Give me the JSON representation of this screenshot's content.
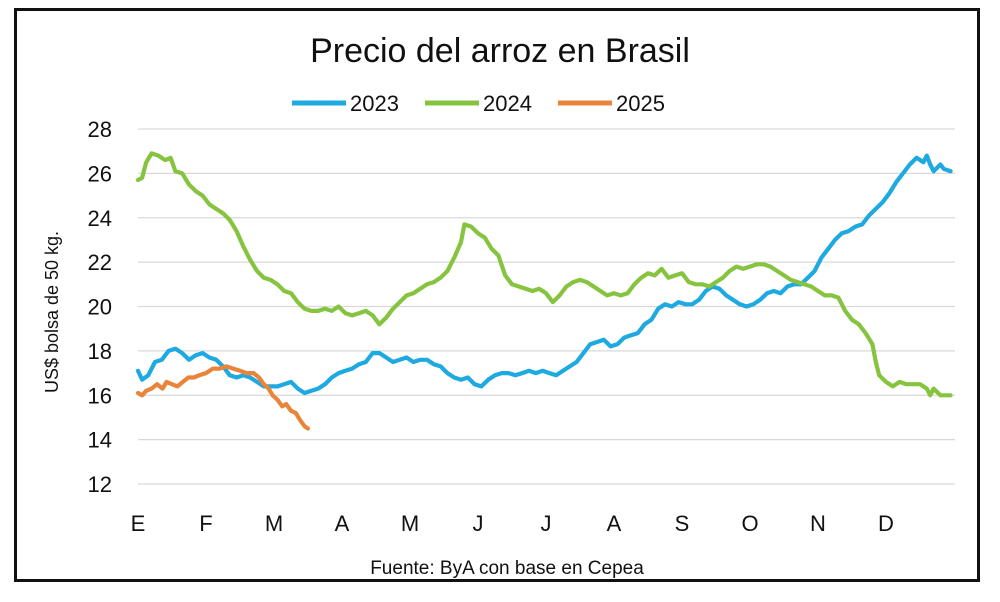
{
  "chart_data": {
    "type": "line",
    "title": "Precio del arroz en Brasil",
    "ylabel": "US$ bolsa de 50 kg.",
    "xlabel": "",
    "source": "Fuente: ByA con base en Cepea",
    "ylim": [
      12,
      28
    ],
    "yticks": [
      "12",
      "14",
      "16",
      "18",
      "20",
      "22",
      "24",
      "26",
      "28"
    ],
    "xlim": [
      0,
      12
    ],
    "month_labels": [
      "E",
      "F",
      "M",
      "A",
      "M",
      "J",
      "J",
      "A",
      "S",
      "O",
      "N",
      "D"
    ],
    "grid": true,
    "legend_position": "top",
    "series": [
      {
        "name": "2023",
        "color": "#1FA9E1",
        "points": [
          [
            0.0,
            17.1
          ],
          [
            0.06,
            16.7
          ],
          [
            0.15,
            16.9
          ],
          [
            0.25,
            17.5
          ],
          [
            0.35,
            17.6
          ],
          [
            0.45,
            18.0
          ],
          [
            0.55,
            18.1
          ],
          [
            0.65,
            17.9
          ],
          [
            0.75,
            17.6
          ],
          [
            0.85,
            17.8
          ],
          [
            0.95,
            17.9
          ],
          [
            1.05,
            17.7
          ],
          [
            1.15,
            17.6
          ],
          [
            1.25,
            17.3
          ],
          [
            1.35,
            16.9
          ],
          [
            1.45,
            16.8
          ],
          [
            1.55,
            16.9
          ],
          [
            1.65,
            16.8
          ],
          [
            1.75,
            16.6
          ],
          [
            1.85,
            16.4
          ],
          [
            1.95,
            16.4
          ],
          [
            2.05,
            16.4
          ],
          [
            2.15,
            16.5
          ],
          [
            2.25,
            16.6
          ],
          [
            2.35,
            16.3
          ],
          [
            2.45,
            16.1
          ],
          [
            2.55,
            16.2
          ],
          [
            2.65,
            16.3
          ],
          [
            2.75,
            16.5
          ],
          [
            2.85,
            16.8
          ],
          [
            2.95,
            17.0
          ],
          [
            3.05,
            17.1
          ],
          [
            3.15,
            17.2
          ],
          [
            3.25,
            17.4
          ],
          [
            3.35,
            17.5
          ],
          [
            3.45,
            17.9
          ],
          [
            3.55,
            17.9
          ],
          [
            3.65,
            17.7
          ],
          [
            3.75,
            17.5
          ],
          [
            3.85,
            17.6
          ],
          [
            3.95,
            17.7
          ],
          [
            4.05,
            17.5
          ],
          [
            4.15,
            17.6
          ],
          [
            4.25,
            17.6
          ],
          [
            4.35,
            17.4
          ],
          [
            4.45,
            17.3
          ],
          [
            4.55,
            17.0
          ],
          [
            4.65,
            16.8
          ],
          [
            4.75,
            16.7
          ],
          [
            4.85,
            16.8
          ],
          [
            4.95,
            16.5
          ],
          [
            5.05,
            16.4
          ],
          [
            5.15,
            16.7
          ],
          [
            5.25,
            16.9
          ],
          [
            5.35,
            17.0
          ],
          [
            5.45,
            17.0
          ],
          [
            5.55,
            16.9
          ],
          [
            5.65,
            17.0
          ],
          [
            5.75,
            17.1
          ],
          [
            5.85,
            17.0
          ],
          [
            5.95,
            17.1
          ],
          [
            6.05,
            17.0
          ],
          [
            6.15,
            16.9
          ],
          [
            6.25,
            17.1
          ],
          [
            6.35,
            17.3
          ],
          [
            6.45,
            17.5
          ],
          [
            6.55,
            17.9
          ],
          [
            6.65,
            18.3
          ],
          [
            6.75,
            18.4
          ],
          [
            6.85,
            18.5
          ],
          [
            6.95,
            18.2
          ],
          [
            7.05,
            18.3
          ],
          [
            7.15,
            18.6
          ],
          [
            7.25,
            18.7
          ],
          [
            7.35,
            18.8
          ],
          [
            7.45,
            19.2
          ],
          [
            7.55,
            19.4
          ],
          [
            7.65,
            19.9
          ],
          [
            7.75,
            20.1
          ],
          [
            7.85,
            20.0
          ],
          [
            7.95,
            20.2
          ],
          [
            8.05,
            20.1
          ],
          [
            8.15,
            20.1
          ],
          [
            8.25,
            20.3
          ],
          [
            8.35,
            20.7
          ],
          [
            8.45,
            20.9
          ],
          [
            8.55,
            20.8
          ],
          [
            8.65,
            20.5
          ],
          [
            8.75,
            20.3
          ],
          [
            8.85,
            20.1
          ],
          [
            8.95,
            20.0
          ],
          [
            9.05,
            20.1
          ],
          [
            9.15,
            20.3
          ],
          [
            9.25,
            20.6
          ],
          [
            9.35,
            20.7
          ],
          [
            9.45,
            20.6
          ],
          [
            9.55,
            20.9
          ],
          [
            9.65,
            21.0
          ],
          [
            9.75,
            21.0
          ],
          [
            9.85,
            21.3
          ],
          [
            9.95,
            21.6
          ],
          [
            10.05,
            22.2
          ],
          [
            10.15,
            22.6
          ],
          [
            10.25,
            23.0
          ],
          [
            10.35,
            23.3
          ],
          [
            10.45,
            23.4
          ],
          [
            10.55,
            23.6
          ],
          [
            10.65,
            23.7
          ],
          [
            10.75,
            24.1
          ],
          [
            10.85,
            24.4
          ],
          [
            10.95,
            24.7
          ],
          [
            11.05,
            25.1
          ],
          [
            11.15,
            25.6
          ],
          [
            11.25,
            26.0
          ],
          [
            11.35,
            26.4
          ],
          [
            11.45,
            26.7
          ],
          [
            11.55,
            26.5
          ],
          [
            11.6,
            26.8
          ],
          [
            11.65,
            26.4
          ],
          [
            11.7,
            26.1
          ],
          [
            11.8,
            26.4
          ],
          [
            11.85,
            26.2
          ],
          [
            11.95,
            26.1
          ]
        ]
      },
      {
        "name": "2024",
        "color": "#86C440",
        "points": [
          [
            0.0,
            25.7
          ],
          [
            0.06,
            25.8
          ],
          [
            0.12,
            26.5
          ],
          [
            0.2,
            26.9
          ],
          [
            0.3,
            26.8
          ],
          [
            0.4,
            26.6
          ],
          [
            0.48,
            26.7
          ],
          [
            0.55,
            26.1
          ],
          [
            0.65,
            26.0
          ],
          [
            0.75,
            25.5
          ],
          [
            0.85,
            25.2
          ],
          [
            0.95,
            25.0
          ],
          [
            1.05,
            24.6
          ],
          [
            1.15,
            24.4
          ],
          [
            1.25,
            24.2
          ],
          [
            1.35,
            23.9
          ],
          [
            1.45,
            23.4
          ],
          [
            1.55,
            22.7
          ],
          [
            1.65,
            22.1
          ],
          [
            1.75,
            21.6
          ],
          [
            1.85,
            21.3
          ],
          [
            1.95,
            21.2
          ],
          [
            2.05,
            21.0
          ],
          [
            2.15,
            20.7
          ],
          [
            2.25,
            20.6
          ],
          [
            2.35,
            20.2
          ],
          [
            2.45,
            19.9
          ],
          [
            2.55,
            19.8
          ],
          [
            2.65,
            19.8
          ],
          [
            2.75,
            19.9
          ],
          [
            2.85,
            19.8
          ],
          [
            2.95,
            20.0
          ],
          [
            3.05,
            19.7
          ],
          [
            3.15,
            19.6
          ],
          [
            3.25,
            19.7
          ],
          [
            3.35,
            19.8
          ],
          [
            3.45,
            19.6
          ],
          [
            3.55,
            19.2
          ],
          [
            3.65,
            19.5
          ],
          [
            3.75,
            19.9
          ],
          [
            3.85,
            20.2
          ],
          [
            3.95,
            20.5
          ],
          [
            4.05,
            20.6
          ],
          [
            4.15,
            20.8
          ],
          [
            4.25,
            21.0
          ],
          [
            4.35,
            21.1
          ],
          [
            4.45,
            21.3
          ],
          [
            4.55,
            21.6
          ],
          [
            4.65,
            22.2
          ],
          [
            4.75,
            22.9
          ],
          [
            4.8,
            23.7
          ],
          [
            4.9,
            23.6
          ],
          [
            5.0,
            23.3
          ],
          [
            5.1,
            23.1
          ],
          [
            5.2,
            22.6
          ],
          [
            5.3,
            22.3
          ],
          [
            5.4,
            21.4
          ],
          [
            5.5,
            21.0
          ],
          [
            5.6,
            20.9
          ],
          [
            5.7,
            20.8
          ],
          [
            5.8,
            20.7
          ],
          [
            5.9,
            20.8
          ],
          [
            6.0,
            20.6
          ],
          [
            6.1,
            20.2
          ],
          [
            6.2,
            20.5
          ],
          [
            6.3,
            20.9
          ],
          [
            6.4,
            21.1
          ],
          [
            6.5,
            21.2
          ],
          [
            6.6,
            21.1
          ],
          [
            6.7,
            20.9
          ],
          [
            6.8,
            20.7
          ],
          [
            6.9,
            20.5
          ],
          [
            7.0,
            20.6
          ],
          [
            7.1,
            20.5
          ],
          [
            7.2,
            20.6
          ],
          [
            7.3,
            21.0
          ],
          [
            7.4,
            21.3
          ],
          [
            7.5,
            21.5
          ],
          [
            7.6,
            21.4
          ],
          [
            7.7,
            21.7
          ],
          [
            7.8,
            21.3
          ],
          [
            7.9,
            21.4
          ],
          [
            8.0,
            21.5
          ],
          [
            8.1,
            21.1
          ],
          [
            8.2,
            21.0
          ],
          [
            8.3,
            21.0
          ],
          [
            8.4,
            20.9
          ],
          [
            8.5,
            21.1
          ],
          [
            8.6,
            21.3
          ],
          [
            8.7,
            21.6
          ],
          [
            8.8,
            21.8
          ],
          [
            8.9,
            21.7
          ],
          [
            9.0,
            21.8
          ],
          [
            9.1,
            21.9
          ],
          [
            9.2,
            21.9
          ],
          [
            9.3,
            21.8
          ],
          [
            9.4,
            21.6
          ],
          [
            9.5,
            21.4
          ],
          [
            9.6,
            21.2
          ],
          [
            9.7,
            21.1
          ],
          [
            9.8,
            21.0
          ],
          [
            9.9,
            20.9
          ],
          [
            10.0,
            20.7
          ],
          [
            10.1,
            20.5
          ],
          [
            10.2,
            20.5
          ],
          [
            10.3,
            20.4
          ],
          [
            10.4,
            19.8
          ],
          [
            10.5,
            19.4
          ],
          [
            10.6,
            19.2
          ],
          [
            10.7,
            18.8
          ],
          [
            10.8,
            18.3
          ],
          [
            10.85,
            17.5
          ],
          [
            10.9,
            16.9
          ],
          [
            11.0,
            16.6
          ],
          [
            11.1,
            16.4
          ],
          [
            11.2,
            16.6
          ],
          [
            11.3,
            16.5
          ],
          [
            11.4,
            16.5
          ],
          [
            11.5,
            16.5
          ],
          [
            11.6,
            16.3
          ],
          [
            11.65,
            16.0
          ],
          [
            11.7,
            16.3
          ],
          [
            11.8,
            16.0
          ],
          [
            11.95,
            16.0
          ]
        ]
      },
      {
        "name": "2025",
        "color": "#E8853A",
        "points": [
          [
            0.0,
            16.1
          ],
          [
            0.06,
            16.0
          ],
          [
            0.12,
            16.2
          ],
          [
            0.2,
            16.3
          ],
          [
            0.28,
            16.5
          ],
          [
            0.36,
            16.3
          ],
          [
            0.42,
            16.6
          ],
          [
            0.5,
            16.5
          ],
          [
            0.58,
            16.4
          ],
          [
            0.66,
            16.6
          ],
          [
            0.74,
            16.8
          ],
          [
            0.82,
            16.8
          ],
          [
            0.9,
            16.9
          ],
          [
            1.0,
            17.0
          ],
          [
            1.1,
            17.2
          ],
          [
            1.2,
            17.2
          ],
          [
            1.3,
            17.3
          ],
          [
            1.4,
            17.2
          ],
          [
            1.5,
            17.1
          ],
          [
            1.6,
            17.0
          ],
          [
            1.7,
            17.0
          ],
          [
            1.78,
            16.8
          ],
          [
            1.85,
            16.5
          ],
          [
            1.92,
            16.3
          ],
          [
            1.98,
            16.0
          ],
          [
            2.05,
            15.8
          ],
          [
            2.12,
            15.5
          ],
          [
            2.18,
            15.6
          ],
          [
            2.25,
            15.3
          ],
          [
            2.32,
            15.2
          ],
          [
            2.38,
            14.9
          ],
          [
            2.45,
            14.6
          ],
          [
            2.5,
            14.5
          ]
        ]
      }
    ]
  }
}
